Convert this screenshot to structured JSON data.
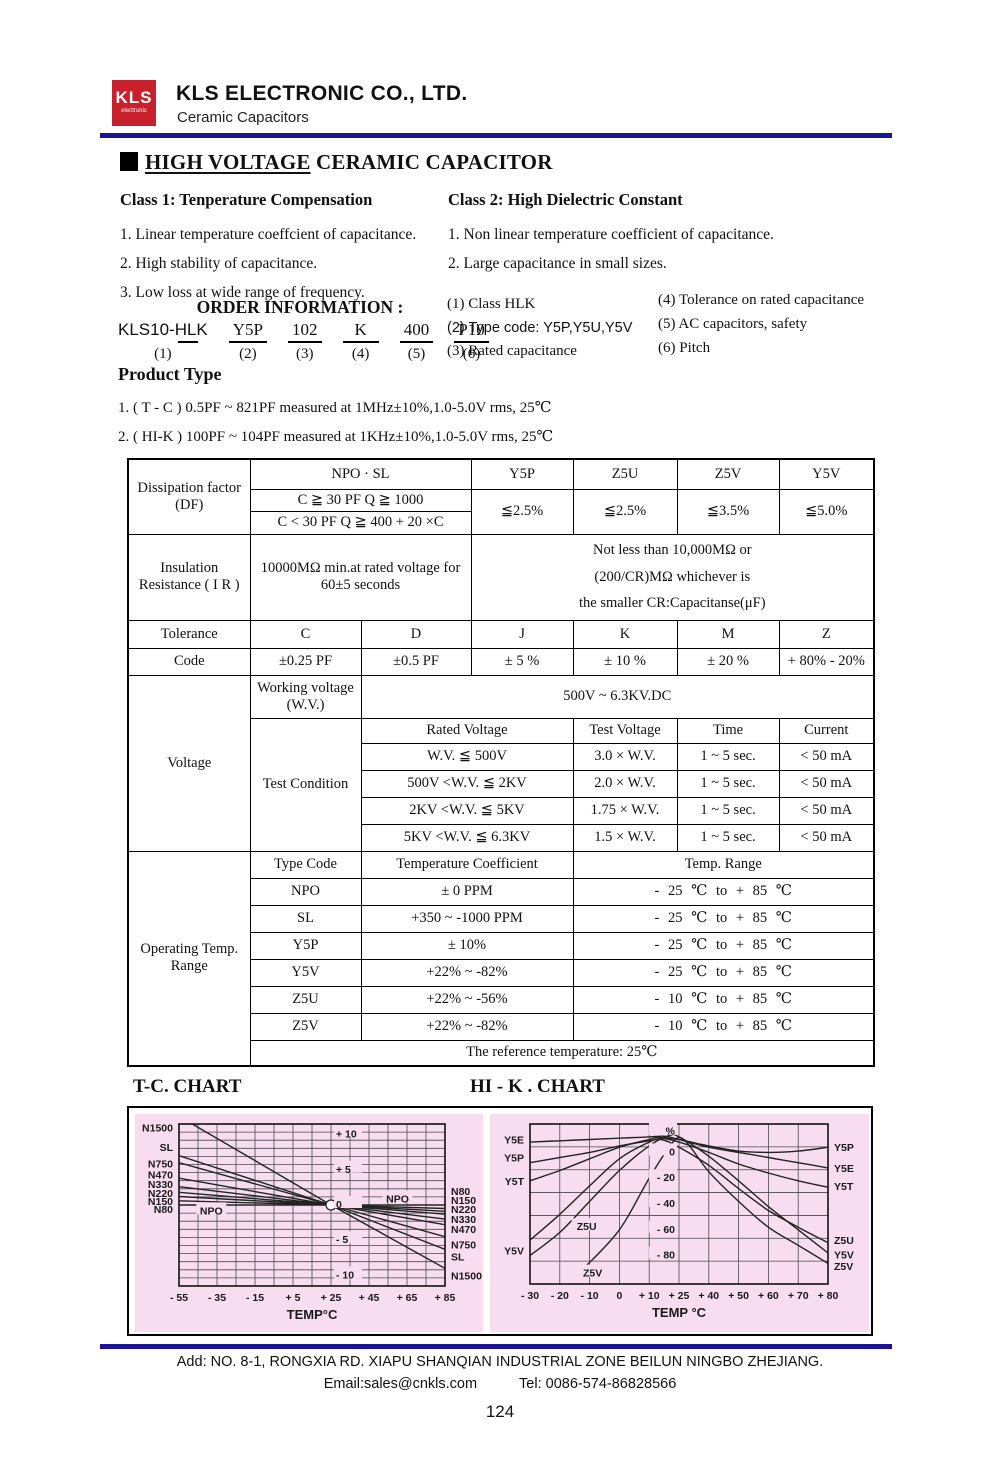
{
  "header": {
    "logo_text": "KLS",
    "logo_sub": "electronic",
    "company": "KLS ELECTRONIC CO., LTD.",
    "subtitle": "Ceramic Capacitors"
  },
  "doc_title": {
    "part1": "HIGH VOLTAGE",
    "part2": " CERAMIC CAPACITOR"
  },
  "class1": {
    "heading": "Class 1: Tenperature Compensation",
    "items": [
      "1. Linear temperature coeffcient of capacitance.",
      "2. High stability of capacitance.",
      "3. Low loss at wide range of frequency."
    ]
  },
  "class2": {
    "heading": "Class 2: High Dielectric Constant",
    "items": [
      "1. Non linear temperature coefficient of capacitance.",
      "2. Large capacitance in small sizes."
    ]
  },
  "order": {
    "heading": "ORDER INFORMATION :",
    "parts": [
      {
        "text": "KLS10-HLK",
        "num": "(1)"
      },
      {
        "text": "Y5P",
        "num": "(2)"
      },
      {
        "text": "102",
        "num": "(3)"
      },
      {
        "text": "K",
        "num": "(4)"
      },
      {
        "text": "400",
        "num": "(5)"
      },
      {
        "text": "P10",
        "num": "(6)"
      }
    ],
    "notes_col1": [
      "(1) Class HLK",
      "(2) Type code: Y5P,Y5U,Y5V",
      "(3) Rated capacitance"
    ],
    "notes_col2": [
      "(4) Tolerance on rated capacitance",
      "(5) AC capacitors, safety",
      "(6) Pitch"
    ]
  },
  "product_type": {
    "heading": "Product  Type",
    "items": [
      "1. ( T - C )  0.5PF ~ 821PF measured at 1MHz±10%,1.0-5.0V rms, 25℃",
      "2. ( HI-K )  100PF ~ 104PF measured at 1KHz±10%,1.0-5.0V rms, 25℃"
    ]
  },
  "spec": {
    "df": {
      "row_label": "Dissipation factor (DF)",
      "npo_sl": "NPO · SL",
      "cond1": "C ≧ 30 PF   Q ≧ 1000",
      "cond2": "C < 30 PF   Q ≧ 400 + 20 ×C",
      "type_headers": [
        "Y5P",
        "Z5U",
        "Z5V",
        "Y5V"
      ],
      "values": [
        "≦2.5%",
        "≦2.5%",
        "≦3.5%",
        "≦5.0%"
      ]
    },
    "ir": {
      "row_label": "Insulation Resistance ( I R )",
      "condition": "10000MΩ min.at rated voltage for 60±5 seconds",
      "spec_lines": [
        "Not less than 10,000MΩ or",
        "(200/CR)MΩ whichever is",
        "the smaller  CR:Capacitanse(μF)"
      ]
    },
    "tolerance": {
      "row_label": "Tolerance",
      "values": [
        "C",
        "D",
        "J",
        "K",
        "M",
        "Z"
      ]
    },
    "code": {
      "row_label": "Code",
      "values": [
        "±0.25 PF",
        "±0.5 PF",
        "± 5 %",
        "± 10 %",
        "± 20 %",
        "+ 80% - 20%"
      ]
    },
    "voltage": {
      "row_label": "Voltage",
      "wv_label": "Working voltage (W.V.)",
      "wv_value": "500V ~ 6.3KV.DC",
      "test_label": "Test Condition",
      "headers": [
        "Rated Voltage",
        "Test Voltage",
        "Time",
        "Current"
      ],
      "rows": [
        {
          "rated": "W.V. ≦ 500V",
          "test": "3.0 × W.V.",
          "time": "1 ~ 5 sec.",
          "current": "< 50 mA"
        },
        {
          "rated": "500V <W.V. ≦ 2KV",
          "test": "2.0 × W.V.",
          "time": "1 ~ 5 sec.",
          "current": "< 50 mA"
        },
        {
          "rated": "2KV <W.V. ≦ 5KV",
          "test": "1.75 × W.V.",
          "time": "1 ~ 5 sec.",
          "current": "< 50 mA"
        },
        {
          "rated": "5KV <W.V. ≦ 6.3KV",
          "test": "1.5 × W.V.",
          "time": "1 ~ 5 sec.",
          "current": "< 50 mA"
        }
      ]
    },
    "operating": {
      "row_label": "Operating Temp. Range",
      "headers": [
        "Type Code",
        "Temperature Coefficient",
        "Temp. Range"
      ],
      "rows": [
        {
          "code": "NPO",
          "coef": "± 0 PPM",
          "range": "- 25 ℃  to  + 85 ℃"
        },
        {
          "code": "SL",
          "coef": "+350 ~ -1000 PPM",
          "range": "- 25 ℃  to  + 85 ℃"
        },
        {
          "code": "Y5P",
          "coef": "± 10%",
          "range": "- 25 ℃  to  + 85 ℃"
        },
        {
          "code": "Y5V",
          "coef": "+22% ~ -82%",
          "range": "- 25 ℃  to  + 85 ℃"
        },
        {
          "code": "Z5U",
          "coef": "+22% ~ -56%",
          "range": "- 10 ℃  to  + 85 ℃"
        },
        {
          "code": "Z5V",
          "coef": "+22% ~ -82%",
          "range": "- 10 ℃  to  + 85 ℃"
        }
      ],
      "footnote": "The reference temperature: 25℃"
    }
  },
  "charts": {
    "tc_title": "T-C. CHART",
    "hik_title": "HI - K . CHART"
  },
  "chart_data": [
    {
      "type": "line",
      "title": "T-C. CHART",
      "xlabel": "TEMP°C",
      "bg": "#f7ddef",
      "x_ticks": [
        "- 55",
        "- 35",
        "- 15",
        "+ 5",
        "+ 25",
        "+ 45",
        "+ 65",
        "+ 85"
      ],
      "tick_values": [
        -55,
        -35,
        -15,
        5,
        25,
        45,
        65,
        85
      ],
      "vline_values": [
        -55,
        -45,
        -35,
        -25,
        -15,
        -5,
        5,
        15,
        25,
        35,
        45,
        55,
        65,
        75,
        85
      ],
      "hlines": 20,
      "ylim": [
        -11.5,
        11.5
      ],
      "y_tick_x": 25,
      "y_tick_anchor": "start",
      "y_ticks": [
        {
          "v": 10,
          "t": "+ 10"
        },
        {
          "v": 5,
          "t": "+ 5"
        },
        {
          "v": 0,
          "t": "0"
        },
        {
          "v": -5,
          "t": "- 5"
        },
        {
          "v": -10,
          "t": "- 10"
        }
      ],
      "circle": {
        "x": 25,
        "y": 0
      },
      "series": [
        {
          "name": "N1500",
          "smooth": false,
          "points": [
            [
              -48,
              11.5
            ],
            [
              25,
              0
            ],
            [
              85,
              -9
            ]
          ]
        },
        {
          "name": "SL",
          "smooth": false,
          "points": [
            [
              -55,
              7
            ],
            [
              25,
              0
            ],
            [
              85,
              -6.3
            ]
          ]
        },
        {
          "name": "N750",
          "smooth": false,
          "points": [
            [
              -55,
              6
            ],
            [
              25,
              0
            ],
            [
              85,
              -4.5
            ]
          ]
        },
        {
          "name": "N470",
          "smooth": false,
          "points": [
            [
              -55,
              3.8
            ],
            [
              25,
              0
            ],
            [
              85,
              -2.8
            ]
          ]
        },
        {
          "name": "N330",
          "smooth": false,
          "points": [
            [
              -55,
              2.6
            ],
            [
              25,
              0
            ],
            [
              85,
              -2.0
            ]
          ]
        },
        {
          "name": "N220",
          "smooth": false,
          "points": [
            [
              -55,
              1.8
            ],
            [
              25,
              0
            ],
            [
              85,
              -1.3
            ]
          ]
        },
        {
          "name": "N150",
          "smooth": false,
          "points": [
            [
              -55,
              1.2
            ],
            [
              25,
              0
            ],
            [
              85,
              -0.9
            ]
          ]
        },
        {
          "name": "N80",
          "smooth": false,
          "points": [
            [
              -55,
              0.6
            ],
            [
              25,
              0
            ],
            [
              85,
              -0.5
            ]
          ]
        },
        {
          "name": "NPO",
          "smooth": false,
          "points": [
            [
              -55,
              0
            ],
            [
              85,
              0
            ]
          ]
        }
      ],
      "labels": [
        {
          "t": "N1500",
          "side": "left",
          "y": 11.0
        },
        {
          "t": "SL",
          "side": "left",
          "y": 8.2
        },
        {
          "t": "N750",
          "side": "left",
          "y": 5.9
        },
        {
          "t": "N470",
          "side": "left",
          "y": 4.3
        },
        {
          "t": "N330",
          "side": "left",
          "y": 3.0
        },
        {
          "t": "N220",
          "side": "left",
          "y": 1.7
        },
        {
          "t": "N150",
          "side": "left",
          "y": 0.6
        },
        {
          "t": "N80",
          "side": "left",
          "y": -0.6
        },
        {
          "t": "NPO",
          "side": "inner",
          "x": -38,
          "y": -0.9
        },
        {
          "t": "NPO",
          "side": "inner",
          "x": 60,
          "y": 0.8
        },
        {
          "t": "N80",
          "side": "right",
          "y": 2.0
        },
        {
          "t": "N150",
          "side": "right",
          "y": 0.7
        },
        {
          "t": "N220",
          "side": "right",
          "y": -0.6
        },
        {
          "t": "N330",
          "side": "right",
          "y": -2.0
        },
        {
          "t": "N470",
          "side": "right",
          "y": -3.4
        },
        {
          "t": "N750",
          "side": "right",
          "y": -5.6
        },
        {
          "t": "SL",
          "side": "right",
          "y": -7.3
        },
        {
          "t": "N1500",
          "side": "right",
          "y": -10.0
        }
      ]
    },
    {
      "type": "line",
      "title": "HI - K . CHART",
      "xlabel": "TEMP °C",
      "bg": "#f7ddef",
      "x_ticks": [
        "- 30",
        "- 20",
        "- 10",
        "0",
        "+ 10",
        "+ 25",
        "+ 40",
        "+ 50",
        "+ 60",
        "+ 70",
        "+ 80"
      ],
      "tick_values": [
        -30,
        -20,
        -10,
        0,
        10,
        25,
        40,
        50,
        60,
        70,
        80
      ],
      "hlines": 7,
      "ylim": [
        -102,
        22
      ],
      "y_tick_x": 25,
      "y_tick_anchor": "end",
      "y_ticks": [
        {
          "v": 16,
          "t": "%"
        },
        {
          "v": 0,
          "t": "0"
        },
        {
          "v": -20,
          "t": "- 20"
        },
        {
          "v": -40,
          "t": "- 40"
        },
        {
          "v": -60,
          "t": "- 60"
        },
        {
          "v": -80,
          "t": "- 80"
        }
      ],
      "series": [
        {
          "name": "Y5P",
          "smooth": true,
          "points": [
            [
              -30,
              -8
            ],
            [
              -20,
              -4
            ],
            [
              -10,
              0
            ],
            [
              0,
              5
            ],
            [
              10,
              9
            ],
            [
              18,
              11
            ],
            [
              25,
              10
            ],
            [
              40,
              5
            ],
            [
              50,
              1
            ],
            [
              60,
              0
            ],
            [
              70,
              1
            ],
            [
              80,
              4
            ]
          ]
        },
        {
          "name": "Y5E",
          "smooth": true,
          "points": [
            [
              -30,
              8
            ],
            [
              -20,
              9
            ],
            [
              -10,
              10
            ],
            [
              0,
              11
            ],
            [
              10,
              12
            ],
            [
              18,
              12.5
            ],
            [
              25,
              10
            ],
            [
              40,
              4
            ],
            [
              50,
              0
            ],
            [
              60,
              -4
            ],
            [
              70,
              -8
            ],
            [
              80,
              -12
            ]
          ]
        },
        {
          "name": "Y5T",
          "smooth": true,
          "points": [
            [
              -30,
              -22
            ],
            [
              -20,
              -14
            ],
            [
              -10,
              -5
            ],
            [
              0,
              4
            ],
            [
              10,
              10
            ],
            [
              15,
              11.5
            ],
            [
              25,
              8
            ],
            [
              40,
              0
            ],
            [
              50,
              -9
            ],
            [
              60,
              -16
            ],
            [
              70,
              -22
            ],
            [
              80,
              -27
            ]
          ]
        },
        {
          "name": "Z5U",
          "smooth": true,
          "points": [
            [
              -30,
              -68
            ],
            [
              -20,
              -48
            ],
            [
              -10,
              -26
            ],
            [
              0,
              -5
            ],
            [
              10,
              8
            ],
            [
              16,
              10
            ],
            [
              25,
              4
            ],
            [
              40,
              -10
            ],
            [
              50,
              -28
            ],
            [
              60,
              -45
            ],
            [
              70,
              -58
            ],
            [
              80,
              -70
            ]
          ]
        },
        {
          "name": "Y5V",
          "smooth": true,
          "points": [
            [
              -30,
              -80
            ],
            [
              -20,
              -62
            ],
            [
              -10,
              -38
            ],
            [
              0,
              -14
            ],
            [
              10,
              5
            ],
            [
              20,
              13
            ],
            [
              25,
              12
            ],
            [
              40,
              -3
            ],
            [
              50,
              -22
            ],
            [
              60,
              -42
            ],
            [
              70,
              -60
            ],
            [
              80,
              -78
            ]
          ]
        },
        {
          "name": "Z5V",
          "smooth": true,
          "points": [
            [
              -12,
              -90
            ],
            [
              0,
              -60
            ],
            [
              10,
              -20
            ],
            [
              22,
              8
            ],
            [
              28,
              9
            ],
            [
              40,
              -15
            ],
            [
              50,
              -38
            ],
            [
              60,
              -58
            ],
            [
              70,
              -72
            ],
            [
              80,
              -86
            ]
          ]
        }
      ],
      "labels": [
        {
          "t": "Y5E",
          "side": "left",
          "y": 10
        },
        {
          "t": "Y5P",
          "side": "left",
          "y": -4
        },
        {
          "t": "Y5T",
          "side": "left",
          "y": -22
        },
        {
          "t": "Y5V",
          "side": "left",
          "y": -76
        },
        {
          "t": "Z5U",
          "side": "inner",
          "x": -11,
          "y": -58
        },
        {
          "t": "Z5V",
          "side": "inner",
          "x": -9,
          "y": -94
        },
        {
          "t": "Y5P",
          "side": "right",
          "y": 4
        },
        {
          "t": "Y5E",
          "side": "right",
          "y": -12
        },
        {
          "t": "Y5T",
          "side": "right",
          "y": -26
        },
        {
          "t": "Z5U",
          "side": "right",
          "y": -68
        },
        {
          "t": "Y5V",
          "side": "right",
          "y": -79
        },
        {
          "t": "Z5V",
          "side": "right",
          "y": -88
        }
      ]
    }
  ],
  "footer": {
    "address": "Add: NO. 8-1, RONGXIA RD. XIAPU SHANQIAN INDUSTRIAL ZONE BEILUN NINGBO ZHEJIANG.",
    "email": "Email:sales@cnkls.com",
    "tel": "Tel: 0086-574-86828566",
    "page": "124"
  }
}
